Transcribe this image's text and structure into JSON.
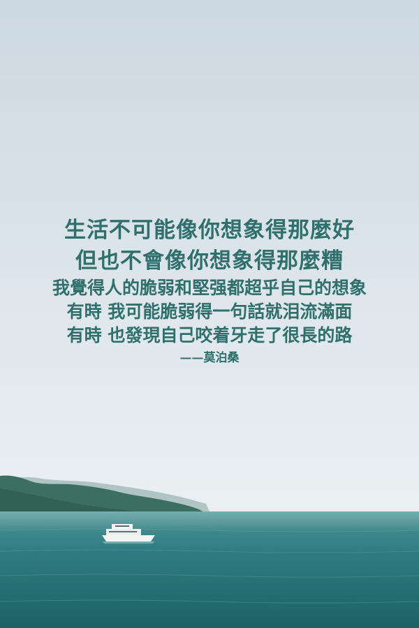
{
  "quote": {
    "lines": [
      "生活不可能像你想象得那麼好",
      "但也不會像你想象得那麼糟",
      "我覺得人的脆弱和堅强都超乎自己的想象",
      "有時 我可能脆弱得一句話就泪流滿面",
      "有時 也發現自己咬着牙走了很長的路"
    ],
    "author": "——莫泊桑"
  },
  "colors": {
    "sky_top": "#ccd8e2",
    "sky_bottom": "#e6edf0",
    "text": "#2f6f6c",
    "sea_top": "#3f8a8c",
    "sea_bottom": "#1f6468",
    "mountain": "#3c6e62"
  }
}
